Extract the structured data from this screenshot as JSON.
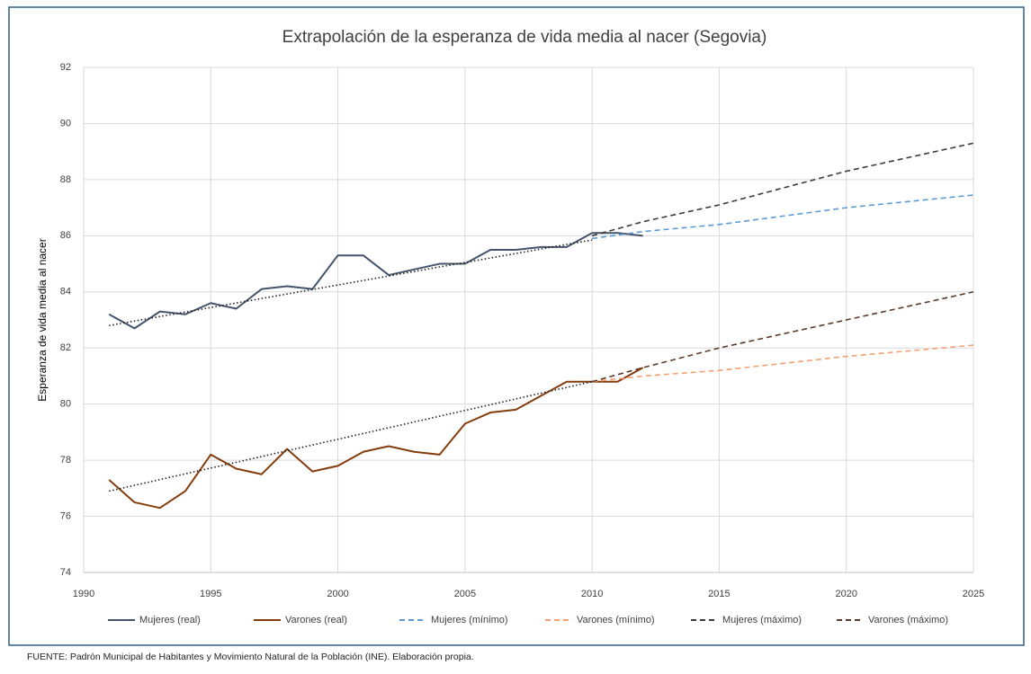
{
  "chart_data": {
    "type": "line",
    "title": "Extrapolación de la esperanza de vida media al nacer (Segovia)",
    "y_label": "Esperanza de vida media al nacer",
    "source": "FUENTE: Padrón Municipal de Habitantes y Movimiento Natural de la Población (INE). Elaboración propia.",
    "xlim": [
      1990,
      2025
    ],
    "xticks": [
      1990,
      1995,
      2000,
      2005,
      2010,
      2015,
      2020,
      2025
    ],
    "ylim": [
      74,
      92
    ],
    "yticks": [
      74,
      76,
      78,
      80,
      82,
      84,
      86,
      88,
      90,
      92
    ],
    "grid": true,
    "legend": "bottom",
    "series": [
      {
        "name": "Mujeres (real)",
        "color": "#44546a",
        "dash": "solid",
        "x": [
          1991,
          1992,
          1993,
          1994,
          1995,
          1996,
          1997,
          1998,
          1999,
          2000,
          2001,
          2002,
          2003,
          2004,
          2005,
          2006,
          2007,
          2008,
          2009,
          2010,
          2011,
          2012
        ],
        "values": [
          83.2,
          82.7,
          83.3,
          83.2,
          83.6,
          83.4,
          84.1,
          84.2,
          84.1,
          85.3,
          85.3,
          84.6,
          84.8,
          85.0,
          85.0,
          85.5,
          85.5,
          85.6,
          85.6,
          86.1,
          86.1,
          86.0
        ]
      },
      {
        "name": "Varones (real)",
        "color": "#843c0c",
        "dash": "solid",
        "x": [
          1991,
          1992,
          1993,
          1994,
          1995,
          1996,
          1997,
          1998,
          1999,
          2000,
          2001,
          2002,
          2003,
          2004,
          2005,
          2006,
          2007,
          2008,
          2009,
          2010,
          2011,
          2012
        ],
        "values": [
          77.3,
          76.5,
          76.3,
          76.9,
          78.2,
          77.7,
          77.5,
          78.4,
          77.6,
          77.8,
          78.3,
          78.5,
          78.3,
          78.2,
          79.3,
          79.7,
          79.8,
          80.3,
          80.8,
          80.8,
          80.8,
          81.3
        ]
      },
      {
        "name": "Mujeres (mínimo)",
        "color": "#5b9bd5",
        "dash": "dashed",
        "x": [
          2010,
          2012,
          2015,
          2020,
          2025
        ],
        "values": [
          85.9,
          86.15,
          86.4,
          87.0,
          87.45
        ]
      },
      {
        "name": "Varones (mínimo)",
        "color": "#f4a070",
        "dash": "dashed",
        "x": [
          2010,
          2012,
          2015,
          2020,
          2025
        ],
        "values": [
          80.8,
          81.0,
          81.2,
          81.7,
          82.1
        ]
      },
      {
        "name": "Mujeres (máximo)",
        "color": "#3b3b3b",
        "dash": "dashed",
        "x": [
          2010,
          2012,
          2015,
          2020,
          2025
        ],
        "values": [
          86.0,
          86.5,
          87.1,
          88.3,
          89.3
        ]
      },
      {
        "name": "Varones (máximo)",
        "color": "#5a3a2a",
        "dash": "dashed",
        "x": [
          2010,
          2012,
          2015,
          2020,
          2025
        ],
        "values": [
          80.8,
          81.3,
          82.0,
          83.0,
          84.0
        ]
      },
      {
        "color": "#222222",
        "dash": "dotted",
        "x": [
          1991,
          2010
        ],
        "values": [
          82.8,
          85.85
        ]
      },
      {
        "color": "#222222",
        "dash": "dotted",
        "x": [
          1991,
          2010
        ],
        "values": [
          76.9,
          80.8
        ]
      }
    ]
  }
}
